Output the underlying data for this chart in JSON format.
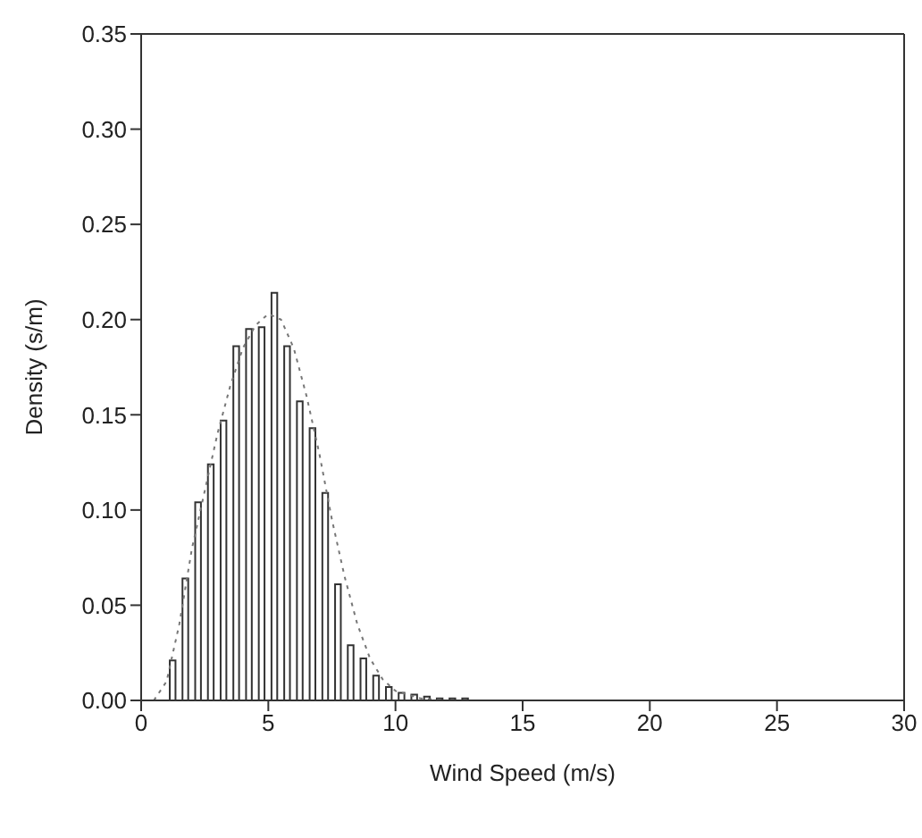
{
  "chart_data": {
    "type": "histogram",
    "xlabel": "Wind Speed (m/s)",
    "ylabel": "Density (s/m)",
    "bins": [
      1,
      1.5,
      2,
      2.5,
      3,
      3.5,
      4,
      4.5,
      5,
      5.5,
      6,
      6.5,
      7,
      7.5,
      8,
      8.5,
      9,
      9.5,
      10,
      10.5,
      11,
      11.5,
      12,
      12.5,
      13
    ],
    "values": [
      0.021,
      0.064,
      0.104,
      0.124,
      0.147,
      0.186,
      0.195,
      0.196,
      0.214,
      0.186,
      0.157,
      0.143,
      0.109,
      0.061,
      0.029,
      0.022,
      0.013,
      0.007,
      0.004,
      0.003,
      0.002,
      0.001,
      0.001,
      0.001
    ],
    "color": "#ffffff",
    "series": [
      {
        "type": "line",
        "color": "#777777",
        "line_style": "dotted",
        "x": [
          0.5,
          1,
          1.5,
          2,
          2.5,
          3,
          3.5,
          4,
          4.5,
          5,
          5.5,
          6,
          6.5,
          7,
          7.5,
          8,
          8.5,
          9,
          9.5,
          10,
          11,
          12
        ],
        "values": [
          0,
          0.01,
          0.04,
          0.08,
          0.11,
          0.14,
          0.165,
          0.185,
          0.197,
          0.203,
          0.2,
          0.185,
          0.16,
          0.13,
          0.095,
          0.065,
          0.04,
          0.022,
          0.011,
          0.005,
          0.001,
          0
        ]
      }
    ],
    "xlim": [
      0,
      30
    ],
    "xticks": [
      0,
      5,
      10,
      15,
      20,
      25,
      30
    ],
    "ylim": [
      0,
      0.35
    ],
    "yticks": [
      {
        "value": 0,
        "label": "0.00"
      },
      {
        "value": 0.05,
        "label": "0.05"
      },
      {
        "value": 0.1,
        "label": "0.10"
      },
      {
        "value": 0.15,
        "label": "0.15"
      },
      {
        "value": 0.2,
        "label": "0.20"
      },
      {
        "value": 0.25,
        "label": "0.25"
      },
      {
        "value": 0.3,
        "label": "0.30"
      },
      {
        "value": 0.35,
        "label": "0.35"
      }
    ],
    "grid": false,
    "legend": false
  }
}
